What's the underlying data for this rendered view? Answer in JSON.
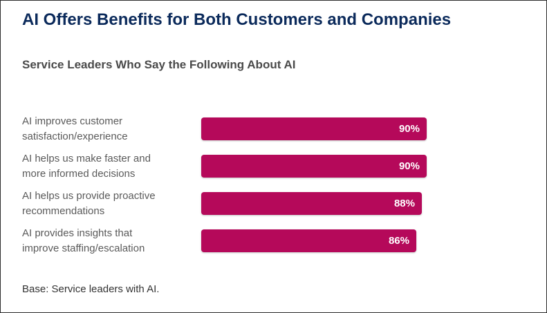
{
  "title": "AI Offers Benefits for Both Customers and Companies",
  "footnote": "Base: Service leaders with AI.",
  "chart_data": {
    "type": "bar",
    "orientation": "horizontal",
    "title": "Service Leaders Who Say the Following About AI",
    "categories": [
      "AI improves customer satisfaction/experience",
      "AI helps us make faster and more informed decisions",
      "AI helps us provide proactive recommendations",
      "AI provides insights that improve staffing/escalation"
    ],
    "category_lines": [
      [
        "AI improves customer",
        "satisfaction/experience"
      ],
      [
        "AI helps us make faster and",
        "more informed decisions"
      ],
      [
        "AI helps us provide proactive",
        "recommendations"
      ],
      [
        "AI provides insights that",
        "improve staffing/escalation"
      ]
    ],
    "values": [
      90,
      90,
      88,
      86
    ],
    "value_labels": [
      "90%",
      "90%",
      "88%",
      "86%"
    ],
    "unit": "%",
    "xlim": [
      0,
      100
    ],
    "grid": false,
    "bar_color": "#b5095a"
  }
}
